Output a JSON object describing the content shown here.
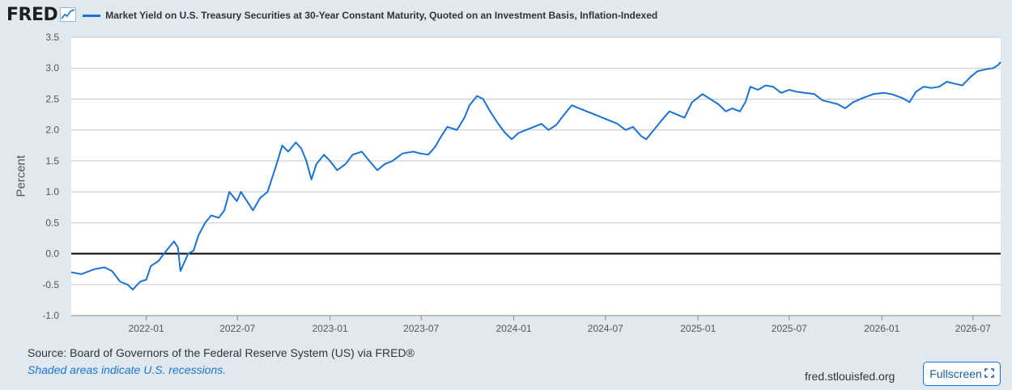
{
  "header": {
    "logo": "FRED",
    "logo_icon": "trend-chart-icon",
    "series_title": "Market Yield on U.S. Treasury Securities at 30-Year Constant Maturity, Quoted on an Investment Basis, Inflation-Indexed"
  },
  "footer": {
    "source": "Source: Board of Governors of the Federal Reserve System (US) via FRED®",
    "recession_note": "Shaded areas indicate U.S. recessions.",
    "site": "fred.stlouisfed.org",
    "fullscreen_label": "Fullscreen",
    "fullscreen_icon": "expand-icon"
  },
  "colors": {
    "series": "#1a73d4",
    "background": "#e1e9f0",
    "plot": "#ffffff",
    "grid": "#c8c8c8",
    "zero_line": "#000000"
  },
  "chart_data": {
    "type": "line",
    "title": "Market Yield on U.S. Treasury Securities at 30-Year Constant Maturity, Quoted on an Investment Basis, Inflation-Indexed",
    "xlabel": "",
    "ylabel": "Percent",
    "ylim": [
      -1.0,
      3.5
    ],
    "xlim": [
      "2021-08-05",
      "2026-08-25"
    ],
    "grid": true,
    "legend": "top-left",
    "y_ticks": [
      "3.5",
      "3.0",
      "2.5",
      "2.0",
      "1.5",
      "1.0",
      "0.5",
      "0.0",
      "-0.5",
      "-1.0"
    ],
    "x_ticks": [
      "2022-01",
      "2022-07",
      "2023-01",
      "2023-07",
      "2024-01",
      "2024-07",
      "2025-01",
      "2025-07",
      "2026-01",
      "2026-07"
    ],
    "series": [
      {
        "name": "Market Yield on U.S. Treasury Securities at 30-Year Constant Maturity, Quoted on an Investment Basis, Inflation-Indexed",
        "points": [
          [
            "2021-08-05",
            -0.3
          ],
          [
            "2021-08-25",
            -0.33
          ],
          [
            "2021-09-20",
            -0.25
          ],
          [
            "2021-10-10",
            -0.22
          ],
          [
            "2021-10-25",
            -0.28
          ],
          [
            "2021-11-10",
            -0.45
          ],
          [
            "2021-11-25",
            -0.5
          ],
          [
            "2021-12-05",
            -0.58
          ],
          [
            "2021-12-20",
            -0.45
          ],
          [
            "2022-01-01",
            -0.42
          ],
          [
            "2022-01-10",
            -0.2
          ],
          [
            "2022-01-25",
            -0.12
          ],
          [
            "2022-02-10",
            0.05
          ],
          [
            "2022-02-25",
            0.2
          ],
          [
            "2022-03-05",
            0.1
          ],
          [
            "2022-03-10",
            -0.28
          ],
          [
            "2022-03-25",
            0.0
          ],
          [
            "2022-04-05",
            0.05
          ],
          [
            "2022-04-15",
            0.3
          ],
          [
            "2022-04-28",
            0.5
          ],
          [
            "2022-05-10",
            0.62
          ],
          [
            "2022-05-25",
            0.58
          ],
          [
            "2022-06-05",
            0.7
          ],
          [
            "2022-06-15",
            1.0
          ],
          [
            "2022-06-30",
            0.85
          ],
          [
            "2022-07-08",
            1.0
          ],
          [
            "2022-07-20",
            0.85
          ],
          [
            "2022-08-01",
            0.7
          ],
          [
            "2022-08-15",
            0.9
          ],
          [
            "2022-08-30",
            1.0
          ],
          [
            "2022-09-15",
            1.4
          ],
          [
            "2022-09-28",
            1.75
          ],
          [
            "2022-10-10",
            1.65
          ],
          [
            "2022-10-25",
            1.8
          ],
          [
            "2022-11-05",
            1.7
          ],
          [
            "2022-11-15",
            1.5
          ],
          [
            "2022-11-25",
            1.2
          ],
          [
            "2022-12-05",
            1.45
          ],
          [
            "2022-12-20",
            1.6
          ],
          [
            "2023-01-01",
            1.5
          ],
          [
            "2023-01-15",
            1.35
          ],
          [
            "2023-02-01",
            1.45
          ],
          [
            "2023-02-15",
            1.6
          ],
          [
            "2023-03-05",
            1.65
          ],
          [
            "2023-03-20",
            1.5
          ],
          [
            "2023-04-05",
            1.35
          ],
          [
            "2023-04-20",
            1.45
          ],
          [
            "2023-05-05",
            1.5
          ],
          [
            "2023-05-25",
            1.62
          ],
          [
            "2023-06-15",
            1.65
          ],
          [
            "2023-06-30",
            1.62
          ],
          [
            "2023-07-15",
            1.6
          ],
          [
            "2023-07-28",
            1.72
          ],
          [
            "2023-08-10",
            1.9
          ],
          [
            "2023-08-22",
            2.05
          ],
          [
            "2023-09-10",
            2.0
          ],
          [
            "2023-09-25",
            2.2
          ],
          [
            "2023-10-05",
            2.4
          ],
          [
            "2023-10-20",
            2.55
          ],
          [
            "2023-11-01",
            2.5
          ],
          [
            "2023-11-15",
            2.3
          ],
          [
            "2023-12-01",
            2.1
          ],
          [
            "2023-12-15",
            1.95
          ],
          [
            "2023-12-28",
            1.85
          ],
          [
            "2024-01-10",
            1.95
          ],
          [
            "2024-01-25",
            2.0
          ],
          [
            "2024-02-10",
            2.05
          ],
          [
            "2024-02-25",
            2.1
          ],
          [
            "2024-03-10",
            2.0
          ],
          [
            "2024-03-25",
            2.08
          ],
          [
            "2024-04-10",
            2.25
          ],
          [
            "2024-04-25",
            2.4
          ],
          [
            "2024-05-10",
            2.35
          ],
          [
            "2024-05-25",
            2.3
          ],
          [
            "2024-06-10",
            2.25
          ],
          [
            "2024-06-25",
            2.2
          ],
          [
            "2024-07-10",
            2.15
          ],
          [
            "2024-07-25",
            2.1
          ],
          [
            "2024-08-10",
            2.0
          ],
          [
            "2024-08-25",
            2.05
          ],
          [
            "2024-09-10",
            1.9
          ],
          [
            "2024-09-20",
            1.85
          ],
          [
            "2024-10-05",
            2.0
          ],
          [
            "2024-10-20",
            2.15
          ],
          [
            "2024-11-05",
            2.3
          ],
          [
            "2024-11-20",
            2.25
          ],
          [
            "2024-12-05",
            2.2
          ],
          [
            "2024-12-20",
            2.45
          ],
          [
            "2025-01-10",
            2.58
          ],
          [
            "2025-01-25",
            2.5
          ],
          [
            "2025-02-10",
            2.42
          ],
          [
            "2025-02-25",
            2.3
          ],
          [
            "2025-03-10",
            2.35
          ],
          [
            "2025-03-25",
            2.3
          ],
          [
            "2025-04-05",
            2.45
          ],
          [
            "2025-04-15",
            2.7
          ],
          [
            "2025-04-30",
            2.65
          ],
          [
            "2025-05-15",
            2.72
          ],
          [
            "2025-05-30",
            2.7
          ],
          [
            "2025-06-15",
            2.6
          ],
          [
            "2025-07-01",
            2.65
          ],
          [
            "2025-07-15",
            2.62
          ],
          [
            "2025-08-01",
            2.6
          ],
          [
            "2025-08-20",
            2.58
          ],
          [
            "2025-09-05",
            2.48
          ],
          [
            "2025-09-20",
            2.45
          ],
          [
            "2025-10-05",
            2.42
          ],
          [
            "2025-10-20",
            2.35
          ],
          [
            "2025-11-05",
            2.45
          ],
          [
            "2025-11-25",
            2.52
          ],
          [
            "2025-12-15",
            2.58
          ],
          [
            "2026-01-05",
            2.6
          ],
          [
            "2026-01-20",
            2.58
          ],
          [
            "2026-02-10",
            2.52
          ],
          [
            "2026-02-25",
            2.45
          ],
          [
            "2026-03-10",
            2.62
          ],
          [
            "2026-03-25",
            2.7
          ],
          [
            "2026-04-10",
            2.68
          ],
          [
            "2026-04-25",
            2.7
          ],
          [
            "2026-05-10",
            2.78
          ],
          [
            "2026-05-25",
            2.75
          ],
          [
            "2026-06-10",
            2.72
          ],
          [
            "2026-06-25",
            2.85
          ],
          [
            "2026-07-10",
            2.95
          ],
          [
            "2026-07-25",
            2.98
          ],
          [
            "2026-08-10",
            3.0
          ],
          [
            "2026-08-20",
            3.05
          ],
          [
            "2026-08-25",
            3.1
          ]
        ]
      }
    ]
  }
}
